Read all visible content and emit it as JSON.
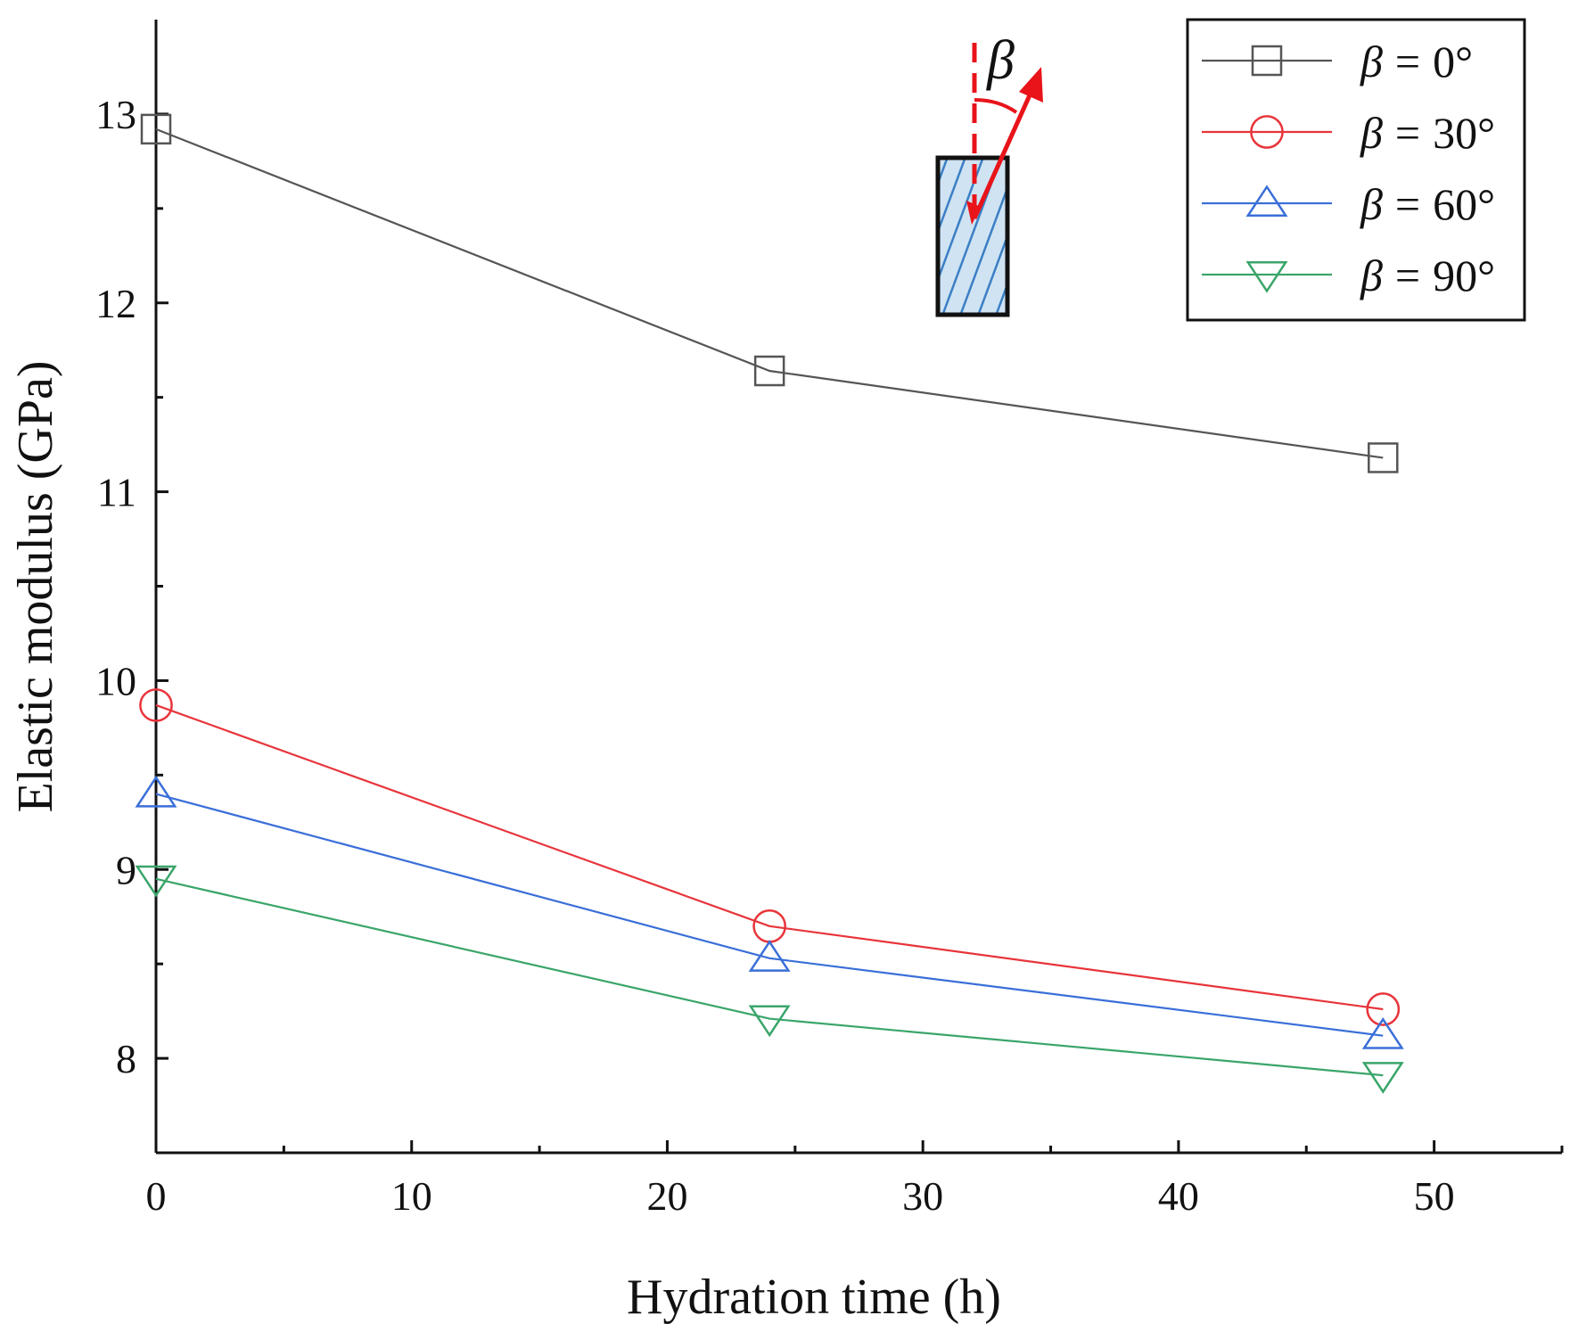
{
  "chart_data": {
    "type": "line",
    "xlabel": "Hydration time",
    "xlabel_unit": "h",
    "ylabel": "Elastic modulus (GPa)",
    "xlim": [
      0,
      55
    ],
    "ylim": [
      7.5,
      13.5
    ],
    "xticks": [
      0,
      10,
      20,
      30,
      40,
      50
    ],
    "yticks": [
      8,
      9,
      10,
      11,
      12,
      13
    ],
    "x": [
      0,
      24,
      48
    ],
    "series": [
      {
        "name": "β = 0°",
        "symbol": "β",
        "eq": "=",
        "angle": "0°",
        "color": "#555555",
        "marker": "square",
        "values": [
          12.92,
          11.64,
          11.18
        ]
      },
      {
        "name": "β = 30°",
        "symbol": "β",
        "eq": "=",
        "angle": "30°",
        "color": "#e8343a",
        "marker": "circle",
        "values": [
          9.87,
          8.7,
          8.26
        ]
      },
      {
        "name": "β = 60°",
        "symbol": "β",
        "eq": "=",
        "angle": "60°",
        "color": "#3a6fd8",
        "marker": "triangle-up",
        "values": [
          9.4,
          8.53,
          8.12
        ]
      },
      {
        "name": "β = 90°",
        "symbol": "β",
        "eq": "=",
        "angle": "90°",
        "color": "#3aa56a",
        "marker": "triangle-down",
        "values": [
          8.95,
          8.21,
          7.91
        ]
      }
    ],
    "legend_position": "top-right",
    "inset": {
      "label": "β",
      "description": "specimen with bedding angle"
    }
  }
}
